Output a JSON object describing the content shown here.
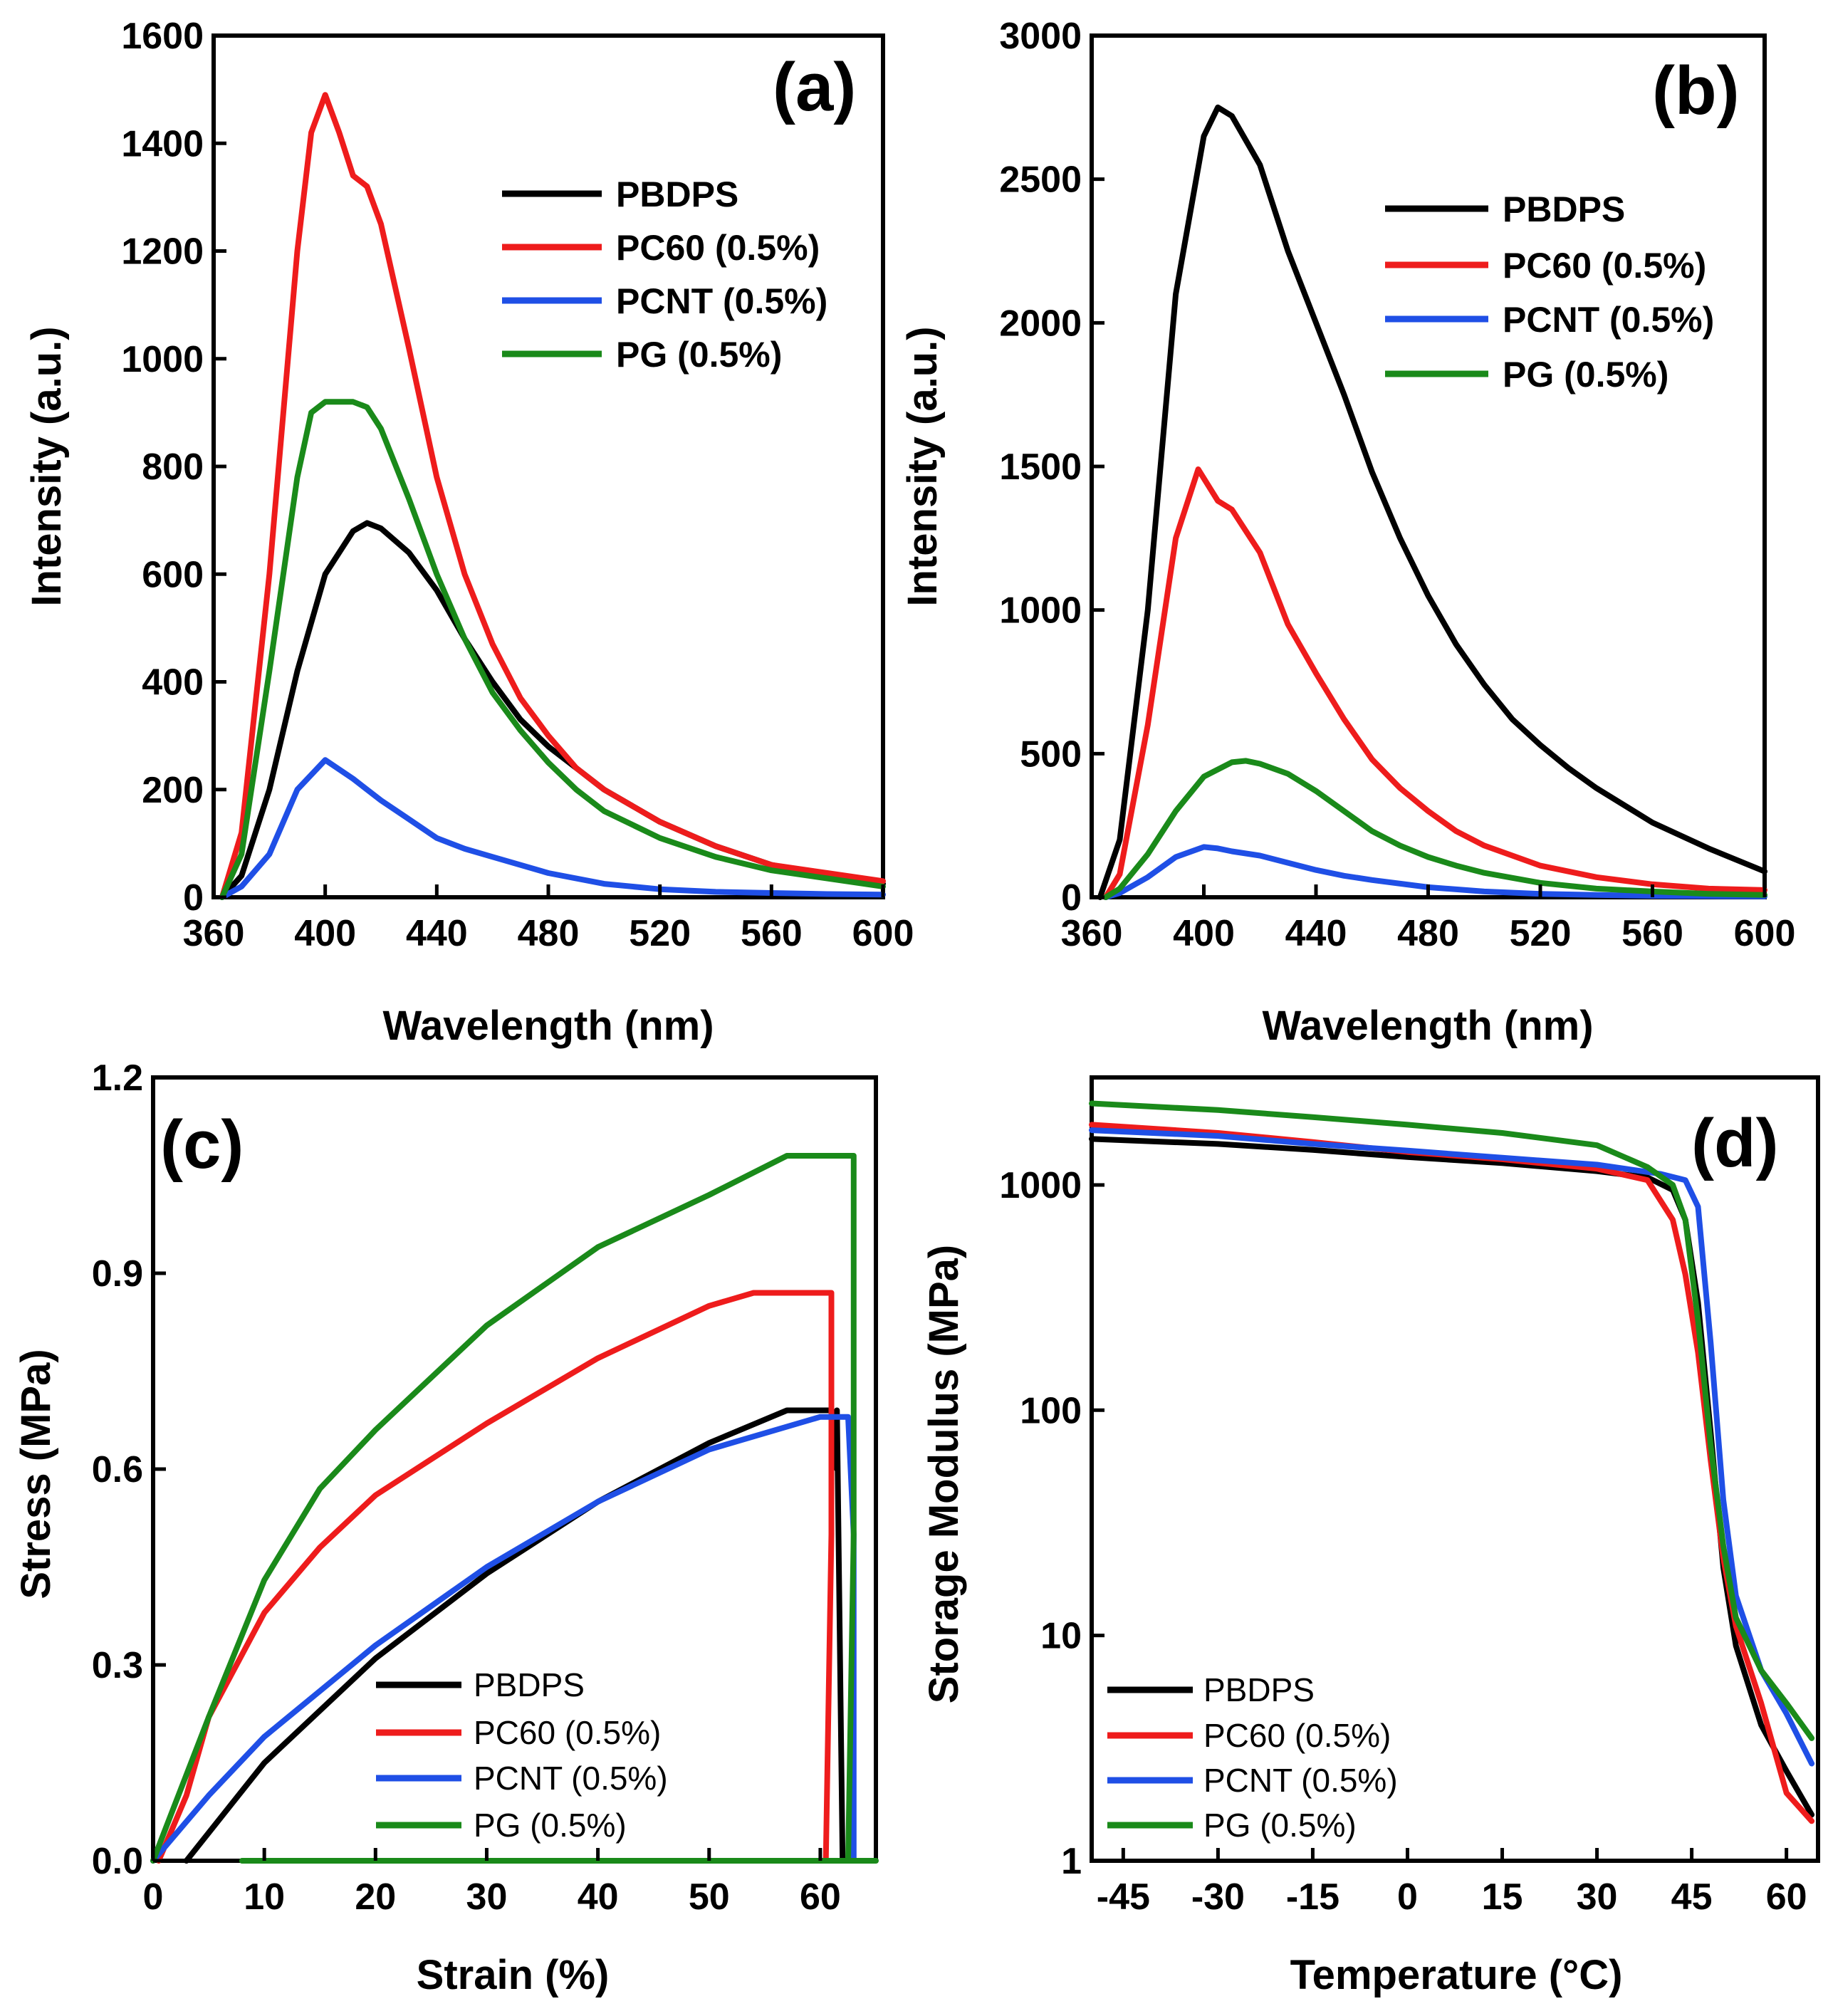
{
  "colors": {
    "PBDPS": "#000000",
    "PC60": "#ee1c1c",
    "PCNT": "#1f4fe6",
    "PG": "#1a8a1a"
  },
  "chart_data": [
    {
      "id": "a",
      "panel_label": "(a)",
      "type": "line",
      "xlabel": "Wavelength (nm)",
      "ylabel": "Intensity (a.u.)",
      "xlim": [
        360,
        600
      ],
      "ylim": [
        0,
        1600
      ],
      "xticks": [
        360,
        400,
        440,
        480,
        520,
        560,
        600
      ],
      "yticks": [
        0,
        200,
        400,
        600,
        800,
        1000,
        1200,
        1400,
        1600
      ],
      "legend": [
        "PBDPS",
        "PC60 (0.5%)",
        "PCNT (0.5%)",
        "PG (0.5%)"
      ],
      "series": [
        {
          "name": "PBDPS",
          "color_key": "PBDPS",
          "x": [
            363,
            370,
            380,
            390,
            400,
            410,
            415,
            420,
            430,
            440,
            450,
            460,
            470,
            480,
            490,
            500,
            520,
            540,
            560,
            580,
            600
          ],
          "y": [
            0,
            40,
            200,
            420,
            600,
            680,
            695,
            685,
            640,
            570,
            480,
            400,
            330,
            280,
            240,
            200,
            140,
            95,
            60,
            40,
            25
          ]
        },
        {
          "name": "PC60 (0.5%)",
          "color_key": "PC60",
          "x": [
            363,
            370,
            380,
            390,
            395,
            400,
            405,
            410,
            415,
            420,
            430,
            440,
            450,
            460,
            470,
            480,
            490,
            500,
            520,
            540,
            560,
            580,
            600
          ],
          "y": [
            0,
            120,
            600,
            1200,
            1420,
            1490,
            1420,
            1340,
            1320,
            1250,
            1020,
            780,
            600,
            470,
            370,
            300,
            240,
            200,
            140,
            95,
            60,
            45,
            30
          ]
        },
        {
          "name": "PCNT (0.5%)",
          "color_key": "PCNT",
          "x": [
            363,
            370,
            380,
            390,
            400,
            410,
            420,
            430,
            440,
            450,
            460,
            480,
            500,
            520,
            540,
            560,
            580,
            600
          ],
          "y": [
            0,
            20,
            80,
            200,
            255,
            220,
            180,
            145,
            110,
            90,
            75,
            45,
            25,
            15,
            10,
            8,
            6,
            5
          ]
        },
        {
          "name": "PG (0.5%)",
          "color_key": "PG",
          "x": [
            363,
            370,
            380,
            390,
            395,
            400,
            410,
            415,
            420,
            430,
            440,
            450,
            460,
            470,
            480,
            490,
            500,
            520,
            540,
            560,
            580,
            600
          ],
          "y": [
            0,
            80,
            420,
            780,
            900,
            920,
            920,
            910,
            870,
            740,
            600,
            480,
            380,
            310,
            250,
            200,
            160,
            110,
            75,
            50,
            35,
            20
          ]
        }
      ]
    },
    {
      "id": "b",
      "panel_label": "(b)",
      "type": "line",
      "xlabel": "Wavelength (nm)",
      "ylabel": "Intensity (a.u.)",
      "xlim": [
        360,
        600
      ],
      "ylim": [
        0,
        3000
      ],
      "xticks": [
        360,
        400,
        440,
        480,
        520,
        560,
        600
      ],
      "yticks": [
        0,
        500,
        1000,
        1500,
        2000,
        2500,
        3000
      ],
      "legend": [
        "PBDPS",
        "PC60 (0.5%)",
        "PCNT (0.5%)",
        "PG (0.5%)"
      ],
      "series": [
        {
          "name": "PBDPS",
          "color_key": "PBDPS",
          "x": [
            363,
            370,
            380,
            390,
            400,
            405,
            410,
            420,
            430,
            440,
            450,
            460,
            470,
            480,
            490,
            500,
            510,
            520,
            530,
            540,
            560,
            580,
            600
          ],
          "y": [
            0,
            200,
            1000,
            2100,
            2650,
            2750,
            2720,
            2550,
            2250,
            2000,
            1750,
            1480,
            1250,
            1050,
            880,
            740,
            620,
            530,
            450,
            380,
            260,
            170,
            90
          ]
        },
        {
          "name": "PC60 (0.5%)",
          "color_key": "PC60",
          "x": [
            365,
            370,
            380,
            390,
            398,
            405,
            410,
            420,
            430,
            440,
            450,
            460,
            470,
            480,
            490,
            500,
            520,
            540,
            560,
            580,
            600
          ],
          "y": [
            0,
            80,
            600,
            1250,
            1490,
            1380,
            1350,
            1200,
            950,
            780,
            620,
            480,
            380,
            300,
            230,
            180,
            110,
            70,
            45,
            30,
            25
          ]
        },
        {
          "name": "PCNT (0.5%)",
          "color_key": "PCNT",
          "x": [
            365,
            370,
            380,
            390,
            400,
            405,
            410,
            420,
            430,
            440,
            450,
            460,
            480,
            500,
            520,
            540,
            560,
            580,
            600
          ],
          "y": [
            0,
            15,
            70,
            140,
            175,
            170,
            160,
            145,
            120,
            95,
            75,
            60,
            35,
            20,
            12,
            8,
            5,
            4,
            3
          ]
        },
        {
          "name": "PG (0.5%)",
          "color_key": "PG",
          "x": [
            365,
            370,
            380,
            390,
            400,
            410,
            415,
            420,
            430,
            440,
            450,
            460,
            470,
            480,
            490,
            500,
            520,
            540,
            560,
            580,
            600
          ],
          "y": [
            0,
            30,
            150,
            300,
            420,
            470,
            475,
            465,
            430,
            370,
            300,
            230,
            180,
            140,
            110,
            85,
            50,
            30,
            20,
            12,
            8
          ]
        }
      ]
    },
    {
      "id": "c",
      "panel_label": "(c)",
      "type": "line",
      "xlabel": "Strain (%)",
      "ylabel": "Stress (MPa)",
      "xlim": [
        0,
        65
      ],
      "ylim": [
        0,
        1.2
      ],
      "xticks": [
        0,
        10,
        20,
        30,
        40,
        50,
        60
      ],
      "ytick_labels": [
        "0.0",
        "0.3",
        "0.6",
        "0.9",
        "1.2"
      ],
      "legend": [
        "PBDPS",
        "PC60 (0.5%)",
        "PCNT (0.5%)",
        "PG (0.5%)"
      ],
      "series": [
        {
          "name": "PBDPS",
          "color_key": "PBDPS",
          "x": [
            3,
            10,
            20,
            30,
            40,
            50,
            57,
            61,
            61.5,
            61.5,
            62
          ],
          "y": [
            0,
            0.15,
            0.31,
            0.44,
            0.55,
            0.64,
            0.69,
            0.69,
            0.6,
            0.69,
            0
          ]
        },
        {
          "name": "PC60 (0.5%)",
          "color_key": "PC60",
          "x": [
            0.5,
            3,
            5,
            10,
            15,
            20,
            30,
            40,
            50,
            54,
            61,
            61,
            60.5
          ],
          "y": [
            0,
            0.1,
            0.22,
            0.38,
            0.48,
            0.56,
            0.67,
            0.77,
            0.85,
            0.87,
            0.87,
            0.5,
            0
          ]
        },
        {
          "name": "PCNT (0.5%)",
          "color_key": "PCNT",
          "x": [
            0,
            5,
            10,
            20,
            30,
            40,
            50,
            60,
            62.5,
            63,
            63
          ],
          "y": [
            0,
            0.1,
            0.19,
            0.33,
            0.45,
            0.55,
            0.63,
            0.68,
            0.68,
            0.5,
            0
          ]
        },
        {
          "name": "PG (0.5%)",
          "color_key": "PG",
          "x": [
            0,
            5,
            10,
            15,
            20,
            30,
            40,
            50,
            57,
            63,
            63,
            62.5
          ],
          "y": [
            0,
            0.22,
            0.43,
            0.57,
            0.66,
            0.82,
            0.94,
            1.02,
            1.08,
            1.08,
            0.5,
            0
          ]
        },
        {
          "name": "baseline",
          "color_key": "PG",
          "x": [
            8,
            65
          ],
          "y": [
            0,
            0
          ]
        }
      ]
    },
    {
      "id": "d",
      "panel_label": "(d)",
      "type": "line",
      "yscale": "log",
      "xlabel": "Temperature (°C)",
      "ylabel": "Storage Modulus (MPa)",
      "xlim": [
        -50,
        65
      ],
      "ylim": [
        1,
        3000
      ],
      "xticks": [
        -45,
        -30,
        -15,
        0,
        15,
        30,
        45,
        60
      ],
      "yticks": [
        1,
        10,
        100,
        1000
      ],
      "legend": [
        "PBDPS",
        "PC60 (0.5%)",
        "PCNT (0.5%)",
        "PG (0.5%)"
      ],
      "series": [
        {
          "name": "PBDPS",
          "color_key": "PBDPS",
          "x": [
            -50,
            -30,
            -15,
            0,
            15,
            30,
            38,
            42,
            44,
            46,
            48,
            50,
            52,
            56,
            60,
            64
          ],
          "y": [
            1600,
            1520,
            1430,
            1330,
            1250,
            1150,
            1080,
            950,
            700,
            300,
            80,
            20,
            9,
            4,
            2.5,
            1.6
          ]
        },
        {
          "name": "PC60 (0.5%)",
          "color_key": "PC60",
          "x": [
            -50,
            -30,
            -15,
            0,
            15,
            30,
            38,
            42,
            44,
            46,
            48,
            50,
            52,
            56,
            60,
            64
          ],
          "y": [
            1850,
            1700,
            1550,
            1400,
            1300,
            1180,
            1050,
            700,
            400,
            180,
            60,
            22,
            11,
            5,
            2,
            1.5
          ]
        },
        {
          "name": "PCNT (0.5%)",
          "color_key": "PCNT",
          "x": [
            -50,
            -30,
            -15,
            0,
            15,
            30,
            40,
            44,
            46,
            48,
            50,
            52,
            56,
            60,
            64
          ],
          "y": [
            1750,
            1650,
            1520,
            1420,
            1320,
            1230,
            1120,
            1050,
            800,
            200,
            40,
            15,
            7,
            4.5,
            2.7
          ]
        },
        {
          "name": "PG (0.5%)",
          "color_key": "PG",
          "x": [
            -50,
            -30,
            -15,
            0,
            15,
            30,
            38,
            42,
            44,
            46,
            48,
            50,
            52,
            56,
            60,
            64
          ],
          "y": [
            2300,
            2150,
            2000,
            1850,
            1700,
            1500,
            1200,
            1000,
            700,
            250,
            70,
            25,
            12,
            7,
            5,
            3.5
          ]
        }
      ]
    }
  ]
}
